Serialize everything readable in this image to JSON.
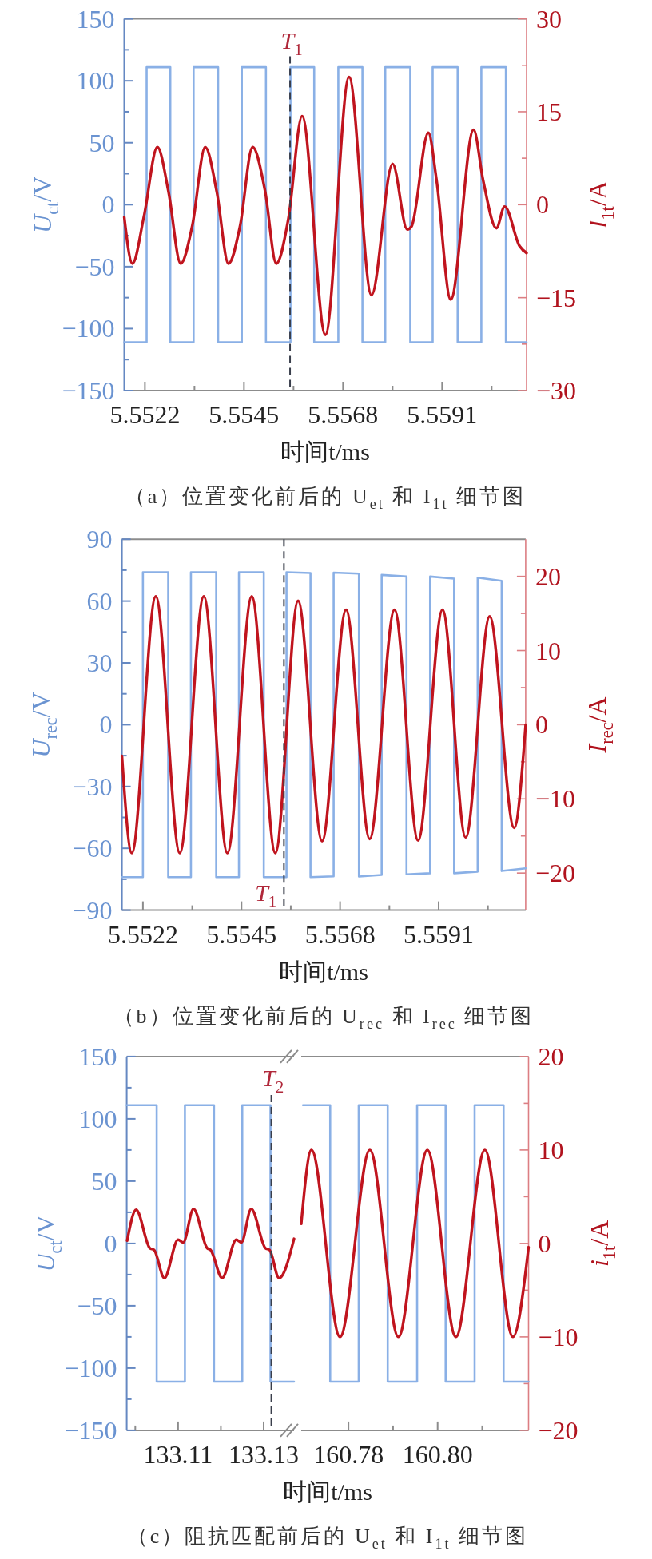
{
  "chart_data": [
    {
      "type": "line",
      "title": "（a）位置变化前后的 U$_{et}$ 和 I$_{1t}$ 细节图",
      "xlabel": "时间t/ms",
      "ylabel": "U$_{ct}$/V",
      "y2label": "I$_{1t}$/A",
      "xlim": [
        5.55172,
        5.56106
      ],
      "xticks": [
        5.5522,
        {
          "value": 5.55335,
          "label": null
        },
        5.5545,
        {
          "value": 5.55565,
          "label": null
        },
        5.5568,
        {
          "value": 5.55795,
          "label": null
        },
        5.5591,
        {
          "value": 5.56025,
          "label": null
        }
      ],
      "ylim": [
        -150,
        150
      ],
      "yticks": [
        150,
        {
          "value": 125,
          "label": null
        },
        100,
        {
          "value": 75,
          "label": null
        },
        50,
        {
          "value": 25,
          "label": null
        },
        0,
        {
          "value": -25,
          "label": null
        },
        -50,
        {
          "value": -75,
          "label": null
        },
        -100,
        {
          "value": -125,
          "label": null
        },
        -150
      ],
      "y2lim": [
        -30,
        30
      ],
      "y2ticks": [
        30,
        {
          "value": 22.5,
          "label": null
        },
        15,
        {
          "value": 7.5,
          "label": null
        },
        0,
        {
          "value": -7.5,
          "label": null
        },
        -15,
        {
          "value": -22.5,
          "label": null
        },
        -30
      ],
      "series": [
        {
          "color": "#8ab0e6",
          "x": [
            5.55172,
            5.55224,
            5.55224,
            5.55279,
            5.55279,
            5.55333,
            5.55333,
            5.5539,
            5.5539,
            5.55445,
            5.55445,
            5.55501,
            5.55501,
            5.55558,
            5.55558,
            5.55613,
            5.55613,
            5.55669,
            5.55669,
            5.55725,
            5.55725,
            5.55778,
            5.55778,
            5.55836,
            5.55836,
            5.55888,
            5.55888,
            5.55946,
            5.55946,
            5.56001,
            5.56001,
            5.56058,
            5.56058,
            5.56106
          ],
          "values": [
            -111,
            -111,
            111,
            111,
            -111,
            -111,
            111,
            111,
            -111,
            -111,
            111,
            111,
            -111,
            -111,
            111,
            111,
            -111,
            -111,
            111,
            111,
            -111,
            -111,
            111,
            111,
            -111,
            -111,
            111,
            111,
            -111,
            -111,
            111,
            111,
            -111,
            -111
          ]
        },
        {
          "color": "#c0141e",
          "axis": "y2",
          "x": [
            5.55172,
            5.55191,
            5.55218,
            5.55249,
            5.55275,
            5.55303,
            5.5533,
            5.5536,
            5.55387,
            5.55414,
            5.55441,
            5.5547,
            5.55499,
            5.55525,
            5.55553,
            5.55585,
            5.55639,
            5.55694,
            5.55746,
            5.55795,
            5.55829,
            5.55839,
            5.55878,
            5.55897,
            5.5593,
            5.55983,
            5.56005,
            5.56036,
            5.56055,
            5.5609,
            5.56106
          ],
          "values": [
            -2.0,
            -9.5,
            -1.8,
            9.3,
            2.0,
            -9.5,
            -3.4,
            9.3,
            2.0,
            -9.5,
            -3.4,
            9.3,
            2.2,
            -9.5,
            -2.3,
            14.3,
            -21.0,
            20.6,
            -14.6,
            6.6,
            -4.0,
            -3.5,
            11.6,
            4.0,
            -15.3,
            12.1,
            4.0,
            -3.8,
            -0.3,
            -6.7,
            -7.8
          ]
        }
      ],
      "ref_lines": [
        {
          "axis": "x",
          "value": 5.55557,
          "label": "T$_{1}$",
          "color": "#3a3f4c",
          "line_style": "dashed"
        }
      ]
    },
    {
      "type": "line",
      "title": "（b）位置变化前后的 U$_{rec}$ 和 I$_{rec}$ 细节图",
      "xlabel": "时间t/ms",
      "ylabel": "U$_{rec}$/V",
      "y2label": "I$_{rec}$/A",
      "xlim": [
        5.55171,
        5.56113
      ],
      "xticks": [
        5.5522,
        {
          "value": 5.55335,
          "label": null
        },
        5.5545,
        {
          "value": 5.55565,
          "label": null
        },
        5.5568,
        {
          "value": 5.55795,
          "label": null
        },
        5.5591,
        {
          "value": 5.56025,
          "label": null
        }
      ],
      "ylim": [
        -90,
        90
      ],
      "yticks": [
        90,
        {
          "value": 75,
          "label": null
        },
        60,
        {
          "value": 45,
          "label": null
        },
        30,
        {
          "value": 15,
          "label": null
        },
        0,
        {
          "value": -15,
          "label": null
        },
        -30,
        {
          "value": -45,
          "label": null
        },
        -60,
        {
          "value": -75,
          "label": null
        },
        -90
      ],
      "y2lim": [
        -25,
        25
      ],
      "y2ticks": [
        20,
        {
          "value": 15,
          "label": null
        },
        10,
        {
          "value": 5,
          "label": null
        },
        0,
        {
          "value": -5,
          "label": null
        },
        -10,
        {
          "value": -15,
          "label": null
        },
        -20
      ],
      "series": [
        {
          "color": "#8ab0e6",
          "x": [
            5.55171,
            5.5522,
            5.5522,
            5.55279,
            5.55279,
            5.55332,
            5.55332,
            5.55391,
            5.55391,
            5.55444,
            5.55444,
            5.55502,
            5.55502,
            5.55555,
            5.55555,
            5.55611,
            5.55611,
            5.55665,
            5.55665,
            5.55724,
            5.55724,
            5.55777,
            5.55777,
            5.55835,
            5.55835,
            5.5589,
            5.5589,
            5.55946,
            5.55946,
            5.56001,
            5.56001,
            5.56057,
            5.56057,
            5.56113
          ],
          "values": [
            -74,
            -74,
            74,
            74,
            -74,
            -74,
            74,
            74,
            -74,
            -74,
            74,
            74,
            -74,
            -74,
            74,
            73.6,
            -74,
            -73.6,
            73.8,
            73.3,
            -73.7,
            -72.9,
            72.7,
            71.9,
            -72.6,
            -72.1,
            71.9,
            70.9,
            -72.1,
            -71.3,
            71.4,
            69.8,
            -71.0,
            -69.7
          ]
        },
        {
          "color": "#c0141e",
          "axis": "y2",
          "x": [
            5.55171,
            5.55194,
            5.5525,
            5.55306,
            5.55362,
            5.55417,
            5.55474,
            5.55529,
            5.55582,
            5.55638,
            5.55694,
            5.55749,
            5.55807,
            5.55862,
            5.55919,
            5.55973,
            5.56029,
            5.56086,
            5.56113
          ],
          "values": [
            -4.2,
            -17.3,
            17.3,
            -17.3,
            17.3,
            -17.3,
            17.3,
            -17.3,
            16.7,
            -15.7,
            15.5,
            -15.4,
            15.5,
            -15.6,
            15.5,
            -15.2,
            14.6,
            -13.9,
            0
          ]
        }
      ],
      "ref_lines": [
        {
          "axis": "x",
          "value": 5.55549,
          "label": "T$_{1}$",
          "color": "#3a3f4c",
          "line_style": "dashed"
        }
      ]
    },
    {
      "type": "line",
      "title": "（c）阻抗匹配前后的 U$_{et}$ 和 I$_{1t}$ 细节图",
      "xlabel": "时间t/ms",
      "ylabel": "U$_{ct}$/V",
      "xlim": [
        133.098,
        133.1371
      ],
      "xticks": [
        {
          "value": 133.1,
          "label": null
        },
        133.11,
        {
          "value": 133.12,
          "label": null
        },
        133.13
      ],
      "ylim": [
        -150,
        150
      ],
      "yticks": [
        150,
        {
          "value": 125,
          "label": null
        },
        100,
        {
          "value": 75,
          "label": null
        },
        50,
        {
          "value": 25,
          "label": null
        },
        0,
        {
          "value": -25,
          "label": null
        },
        -50,
        {
          "value": -75,
          "label": null
        },
        -100,
        {
          "value": -125,
          "label": null
        },
        -150
      ],
      "y2lim": [
        -20,
        20
      ],
      "series": [
        {
          "color": "#8ab0e6",
          "x": [
            133.098,
            133.105,
            133.105,
            133.1116,
            133.1116,
            133.1184,
            133.1184,
            133.125,
            133.125,
            133.1316,
            133.1316,
            133.1371
          ],
          "values": [
            111,
            111,
            -111,
            -111,
            111,
            111,
            -111,
            -111,
            111,
            111,
            -111,
            -111
          ]
        },
        {
          "color": "#c0141e",
          "axis": "y2",
          "x": [
            133.0981,
            133.1002,
            133.1034,
            133.1044,
            133.1068,
            133.11,
            133.1112,
            133.1136,
            133.1168,
            133.1176,
            133.1203,
            133.1236,
            133.1248,
            133.1271,
            133.1304,
            133.1314,
            133.1336,
            133.1371
          ],
          "values": [
            0.3,
            3.6,
            -0.5,
            -0.7,
            -3.7,
            0.4,
            0.1,
            3.7,
            -0.5,
            -0.7,
            -3.7,
            0.4,
            0.1,
            3.7,
            -0.5,
            -0.7,
            -3.7,
            0.5
          ]
        }
      ],
      "ref_lines": [
        {
          "axis": "x",
          "value": 133.1318,
          "label": "T$_{2}$",
          "color": "#3a3f4c",
          "line_style": "dashed"
        }
      ]
    },
    {
      "type": "line",
      "y2label": "i$_{1t}$/A",
      "xlim": [
        160.7694,
        160.8204
      ],
      "xticks": [
        160.78,
        {
          "value": 160.79,
          "label": null
        },
        {
          "value": 160.8,
          "label": "160.80"
        },
        {
          "value": 160.81,
          "label": null
        }
      ],
      "ylim": [
        -150,
        150
      ],
      "y2lim": [
        -20,
        20
      ],
      "y2ticks": [
        20,
        {
          "value": 15,
          "label": null
        },
        10,
        {
          "value": 5,
          "label": null
        },
        0,
        {
          "value": -5,
          "label": null
        },
        -10,
        {
          "value": -15,
          "label": null
        },
        -20
      ],
      "series": [
        {
          "color": "#8ab0e6",
          "x": [
            160.7698,
            160.7759,
            160.7759,
            160.7823,
            160.7823,
            160.7888,
            160.7888,
            160.7954,
            160.7954,
            160.8018,
            160.8018,
            160.8083,
            160.8083,
            160.8148,
            160.8148,
            160.8204
          ],
          "values": [
            111,
            111,
            -111,
            -111,
            111,
            111,
            -111,
            -111,
            111,
            111,
            -111,
            -111,
            111,
            111,
            -111,
            -111
          ]
        },
        {
          "color": "#c0141e",
          "axis": "y2",
          "x": [
            160.7694,
            160.7717,
            160.7781,
            160.7848,
            160.7912,
            160.7977,
            160.8041,
            160.8106,
            160.8169,
            160.8204
          ],
          "values": [
            2.1,
            10,
            -10,
            10,
            -10,
            10,
            -10,
            10,
            -10,
            -0.4
          ]
        }
      ]
    }
  ]
}
